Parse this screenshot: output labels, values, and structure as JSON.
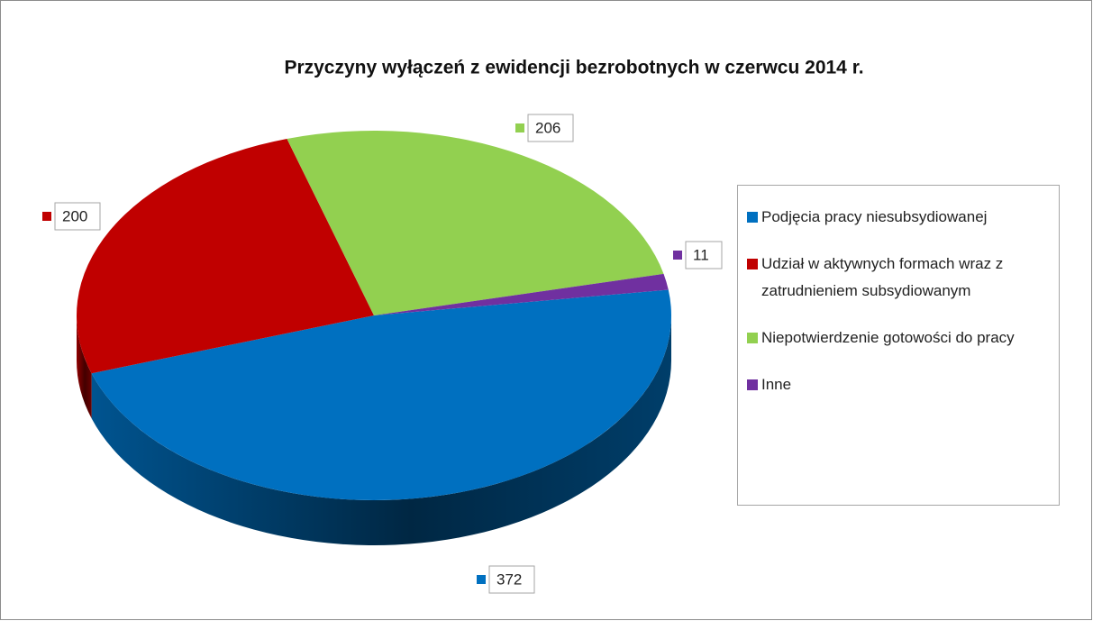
{
  "chart_data": {
    "type": "pie",
    "title": "Przyczyny wyłączeń z ewidencji bezrobotnych w czerwcu 2014 r.",
    "categories": [
      "Podjęcia pracy niesubsydiowanej",
      "Udział w aktywnych formach wraz z zatrudnieniem subsydiowanym",
      "Niepotwierdzenie gotowości do pracy",
      "Inne"
    ],
    "values": [
      372,
      200,
      206,
      11
    ],
    "colors": [
      "#0070c0",
      "#c00000",
      "#92d050",
      "#7030a0"
    ],
    "legend": "right"
  }
}
